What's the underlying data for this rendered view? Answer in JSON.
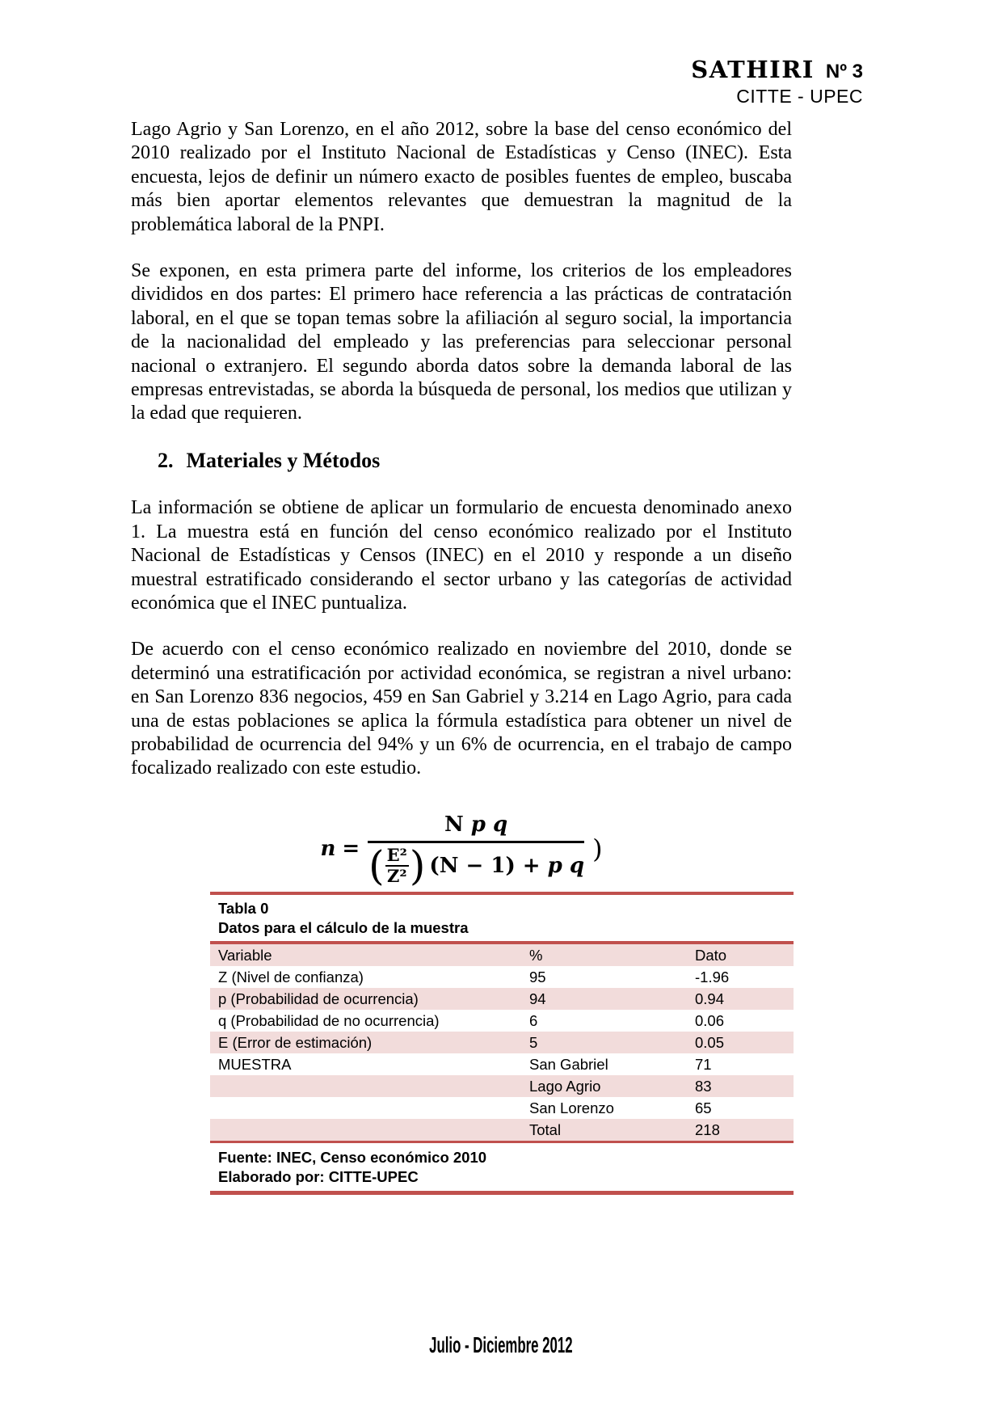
{
  "header": {
    "journal": "SATHIRI",
    "issue": "Nº 3",
    "subtitle": "CITTE - UPEC"
  },
  "body": {
    "paragraph_1": "Lago Agrio y San Lorenzo, en el año 2012, sobre la base del censo económico del 2010 realizado por el Instituto Nacional de Estadísticas y Censo (INEC). Esta encuesta, lejos de definir un número exacto de posibles fuentes de empleo, buscaba más bien aportar elementos relevantes que demuestran la magnitud de la problemática laboral de la PNPI.",
    "paragraph_2": "Se exponen, en esta primera parte del informe, los criterios de los empleadores divididos en dos partes: El primero hace referencia a las prácticas de contratación laboral, en el que se topan temas sobre la afiliación al seguro social, la importancia de la nacionalidad del empleado y las preferencias para seleccionar personal nacional o extranjero. El segundo aborda datos sobre la demanda laboral de las empresas entrevistadas, se aborda la búsqueda de personal, los medios que utilizan y la edad que requieren.",
    "heading": {
      "number": "2.",
      "title": "Materiales y Métodos"
    },
    "paragraph_3": "La información se obtiene de aplicar un formulario de encuesta denominado anexo 1. La muestra está en función del censo económico realizado por el Instituto Nacional de Estadísticas y Censos (INEC) en el 2010 y responde a un diseño muestral estratificado considerando el sector urbano y las categorías de actividad económica que el INEC puntualiza.",
    "paragraph_4": "De acuerdo con el censo económico realizado en noviembre del 2010, donde se determinó una estratificación por actividad económica, se registran a nivel urbano: en San Lorenzo 836 negocios, 459 en San Gabriel y 3.214 en Lago Agrio, para cada una de estas poblaciones se aplica la fórmula estadística para obtener un nivel de probabilidad de ocurrencia del 94% y un 6% de ocurrencia, en el trabajo de campo focalizado realizado con este estudio."
  },
  "formula": {
    "variable": "n",
    "equals": "=",
    "numerator_N": "N",
    "numerator_pq": "p q",
    "open_paren": "(",
    "inner_top": "E²",
    "inner_bottom": "Z²",
    "close_paren": ")",
    "den_tail": "(N − 1) + ",
    "den_pq": "p q",
    "trailing_paren": ")"
  },
  "table": {
    "label": "Tabla 0",
    "title": "Datos para el cálculo de la muestra",
    "columns": [
      "Variable",
      "%",
      "Dato"
    ],
    "rows": [
      {
        "c1": "Z (Nivel de confianza)",
        "c2": "95",
        "c3": "-1.96",
        "shaded": false,
        "b1": true,
        "b2": true,
        "b3": true
      },
      {
        "c1": "p (Probabilidad de ocurrencia)",
        "c2": "94",
        "c3": "0.94",
        "shaded": true,
        "b1": false,
        "b2": false,
        "b3": false
      },
      {
        "c1": "q (Probabilidad de no ocurrencia)",
        "c2": "6",
        "c3": "0.06",
        "shaded": false,
        "b1": true,
        "b2": true,
        "b3": true
      },
      {
        "c1": "E (Error de estimación)",
        "c2": "5",
        "c3": "0.05",
        "shaded": true,
        "b1": false,
        "b2": false,
        "b3": false
      },
      {
        "c1": "MUESTRA",
        "c2": "San Gabriel",
        "c3": "71",
        "shaded": false,
        "b1": true,
        "b2": true,
        "b3": true
      },
      {
        "c1": "",
        "c2": "Lago Agrio",
        "c3": "83",
        "shaded": true,
        "b1": false,
        "b2": false,
        "b3": false
      },
      {
        "c1": "",
        "c2": "San Lorenzo",
        "c3": "65",
        "shaded": false,
        "b1": true,
        "b2": true,
        "b3": true
      },
      {
        "c1": "",
        "c2": "Total",
        "c3": "218",
        "shaded": true,
        "b1": false,
        "b2": true,
        "b3": false
      }
    ],
    "source_note": "Fuente: INEC, Censo económico 2010",
    "elaborated_note": "Elaborado por: CITTE-UPEC",
    "accent_color": "#C0504D",
    "band_color": "#F2DCDB"
  },
  "footer": {
    "date_range": "Julio - Diciembre 2012"
  }
}
